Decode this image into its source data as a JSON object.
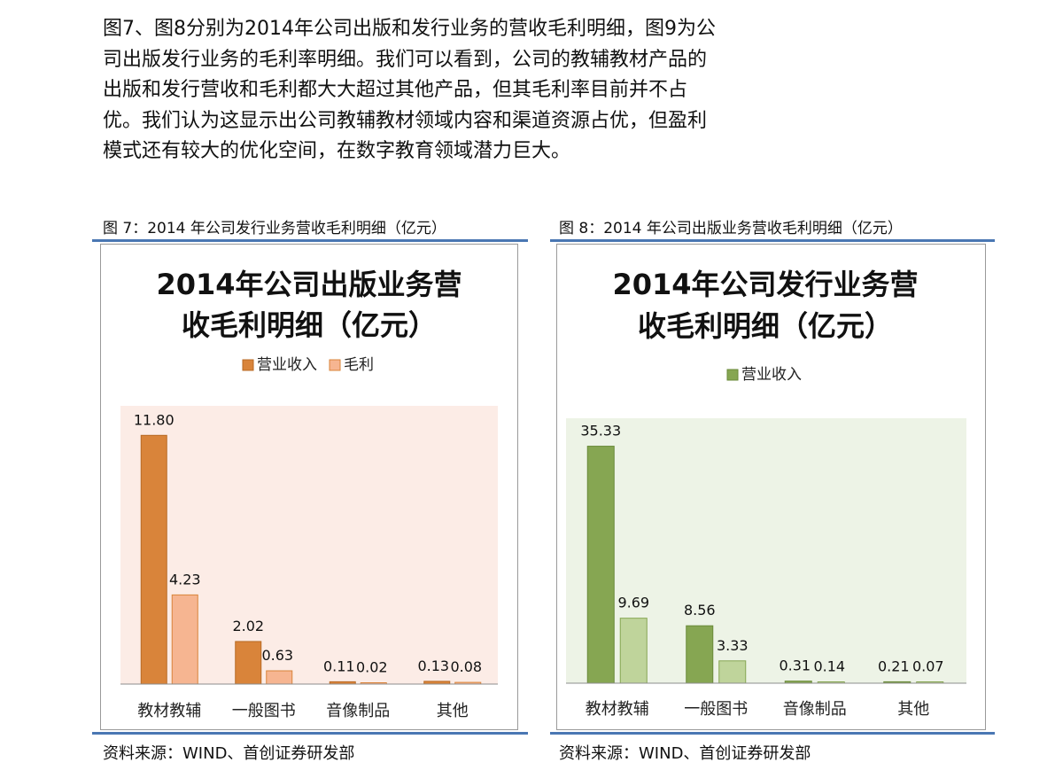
{
  "text": {
    "paragraph": "图7、图8分别为2014年公司出版和发行业务的营收毛利明细，图9为公司出版发行业务的毛利率明细。我们可以看到，公司的教辅教材产品的出版和发行营收和毛利都大大超过其他产品，但其毛利率目前并不占优。我们认为这显示出公司教辅教材领域内容和渠道资源占优，但盈利模式还有较大的优化空间，在数字教育领域潜力巨大。",
    "figure7_caption": "图 7：2014 年公司发行业务营收毛利明细（亿元）",
    "figure8_caption": "图 8：2014 年公司出版业务营收毛利明细（亿元）",
    "source_left": "资料来源：WIND、首创证券研发部",
    "source_right": "资料来源：WIND、首创证券研发部"
  },
  "chart_data": [
    {
      "type": "bar",
      "title_lines": [
        "2014年公司出版业务营",
        "收毛利明细（亿元）"
      ],
      "categories": [
        "教材教辅",
        "一般图书",
        "音像制品",
        "其他"
      ],
      "series": [
        {
          "name": "营业收入",
          "values": [
            11.8,
            2.02,
            0.11,
            0.13
          ],
          "labels": [
            "11.80",
            "2.02",
            "0.11",
            "0.13"
          ],
          "color": "#d9843a",
          "stroke": "#b86a24"
        },
        {
          "name": "毛利",
          "values": [
            4.23,
            0.63,
            0.02,
            0.08
          ],
          "labels": [
            "4.23",
            "0.63",
            "0.02",
            "0.08"
          ],
          "color": "#f6b591",
          "stroke": "#d9843a"
        }
      ],
      "ylim": [
        0,
        13.2
      ],
      "plot_bg": "#fcece6",
      "legend": "top"
    },
    {
      "type": "bar",
      "title_lines": [
        "2014年公司发行业务营",
        "收毛利明细（亿元）"
      ],
      "categories": [
        "教材教辅",
        "一般图书",
        "音像制品",
        "其他"
      ],
      "series": [
        {
          "name": "营业收入",
          "values": [
            35.33,
            8.56,
            0.31,
            0.21
          ],
          "labels": [
            "35.33",
            "8.56",
            "0.31",
            "0.21"
          ],
          "color": "#86a652",
          "stroke": "#6a8a3a"
        },
        {
          "name": "",
          "values": [
            9.69,
            3.33,
            0.14,
            0.07
          ],
          "labels": [
            "9.69",
            "3.33",
            "0.14",
            "0.07"
          ],
          "color": "#bfd49b",
          "stroke": "#86a652"
        }
      ],
      "ylim": [
        0,
        39.5
      ],
      "plot_bg": "#edf3e6",
      "legend": "top"
    }
  ]
}
